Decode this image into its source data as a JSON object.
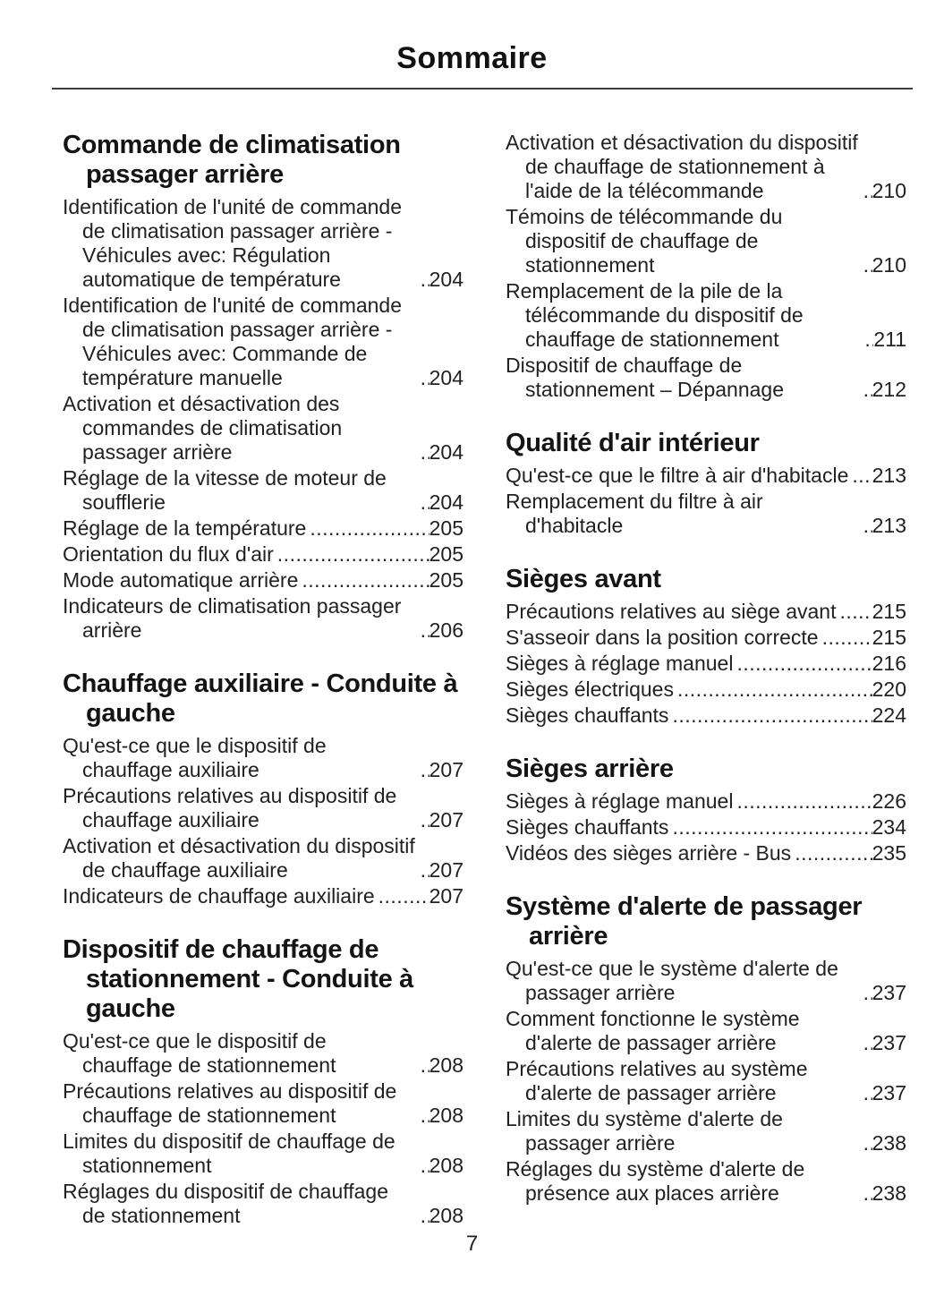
{
  "document": {
    "title": "Sommaire",
    "page_number": "7"
  },
  "toc": {
    "columns": {
      "left": [
        {
          "heading": "Commande de climatisation passager arrière",
          "entries": [
            {
              "text": "Identification de l'unité de commande de climatisation passager arrière - Véhicules avec: Régulation automatique de température",
              "page": "204"
            },
            {
              "text": "Identification de l'unité de commande de climatisation passager arrière - Véhicules avec: Commande de température manuelle",
              "page": "204"
            },
            {
              "text": "Activation et désactivation des commandes de climatisation passager arrière",
              "page": "204"
            },
            {
              "text": "Réglage de la vitesse de moteur de soufflerie",
              "page": "204"
            },
            {
              "text": "Réglage de la température",
              "page": "205"
            },
            {
              "text": "Orientation du flux d'air",
              "page": "205"
            },
            {
              "text": "Mode automatique arrière",
              "page": "205"
            },
            {
              "text": "Indicateurs de climatisation passager arrière",
              "page": "206"
            }
          ]
        },
        {
          "heading": "Chauffage auxiliaire - Conduite à gauche",
          "entries": [
            {
              "text": "Qu'est-ce que le dispositif de chauffage auxiliaire",
              "page": "207"
            },
            {
              "text": "Précautions relatives au dispositif de chauffage auxiliaire",
              "page": "207"
            },
            {
              "text": "Activation et désactivation du dispositif de chauffage auxiliaire",
              "page": "207"
            },
            {
              "text": "Indicateurs de chauffage auxiliaire",
              "page": "207"
            }
          ]
        },
        {
          "heading": "Dispositif de chauffage de stationnement - Conduite à gauche",
          "entries": [
            {
              "text": "Qu'est-ce que le dispositif de chauffage de stationnement",
              "page": "208"
            },
            {
              "text": "Précautions relatives au dispositif de chauffage de stationnement",
              "page": "208"
            },
            {
              "text": "Limites du dispositif de chauffage de stationnement",
              "page": "208"
            },
            {
              "text": "Réglages du dispositif de chauffage de stationnement",
              "page": "208"
            }
          ]
        }
      ],
      "right": [
        {
          "heading": "",
          "entries": [
            {
              "text": "Activation et désactivation du dispositif de chauffage de stationnement à l'aide de la télécommande",
              "page": "210"
            },
            {
              "text": "Témoins de télécommande du dispositif de chauffage de stationnement",
              "page": "210"
            },
            {
              "text": "Remplacement de la pile de la télécommande du dispositif de chauffage de stationnement",
              "page": "211"
            },
            {
              "text": "Dispositif de chauffage de stationnement – Dépannage",
              "page": "212"
            }
          ]
        },
        {
          "heading": "Qualité d'air intérieur",
          "entries": [
            {
              "text": "Qu'est-ce que le filtre à air d'habitacle",
              "page": "213"
            },
            {
              "text": "Remplacement du filtre à air d'habitacle",
              "page": "213"
            }
          ]
        },
        {
          "heading": "Sièges avant",
          "entries": [
            {
              "text": "Précautions relatives au siège avant",
              "page": "215"
            },
            {
              "text": "S'asseoir dans la position correcte",
              "page": "215"
            },
            {
              "text": "Sièges à réglage manuel",
              "page": "216"
            },
            {
              "text": "Sièges électriques",
              "page": "220"
            },
            {
              "text": "Sièges chauffants",
              "page": "224"
            }
          ]
        },
        {
          "heading": "Sièges arrière",
          "entries": [
            {
              "text": "Sièges à réglage manuel",
              "page": "226"
            },
            {
              "text": "Sièges chauffants",
              "page": "234"
            },
            {
              "text": "Vidéos des sièges arrière - Bus",
              "page": "235"
            }
          ]
        },
        {
          "heading": "Système d'alerte de passager arrière",
          "entries": [
            {
              "text": "Qu'est-ce que le système d'alerte de passager arrière",
              "page": "237"
            },
            {
              "text": "Comment fonctionne le système d'alerte de passager arrière",
              "page": "237"
            },
            {
              "text": "Précautions relatives au système d'alerte de passager arrière",
              "page": "237"
            },
            {
              "text": "Limites du système d'alerte de passager arrière",
              "page": "238"
            },
            {
              "text": "Réglages du système d'alerte de présence aux places arrière",
              "page": "238"
            }
          ]
        }
      ]
    }
  }
}
